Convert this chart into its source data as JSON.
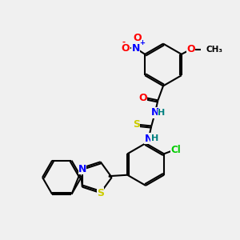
{
  "background_color": "#f0f0f0",
  "bond_color": "#000000",
  "line_width": 1.5,
  "atom_colors": {
    "O": "#ff0000",
    "N": "#0000ff",
    "S": "#cccc00",
    "Cl": "#00cc00",
    "C": "#000000",
    "H": "#008080"
  },
  "font_size": 8,
  "title": ""
}
